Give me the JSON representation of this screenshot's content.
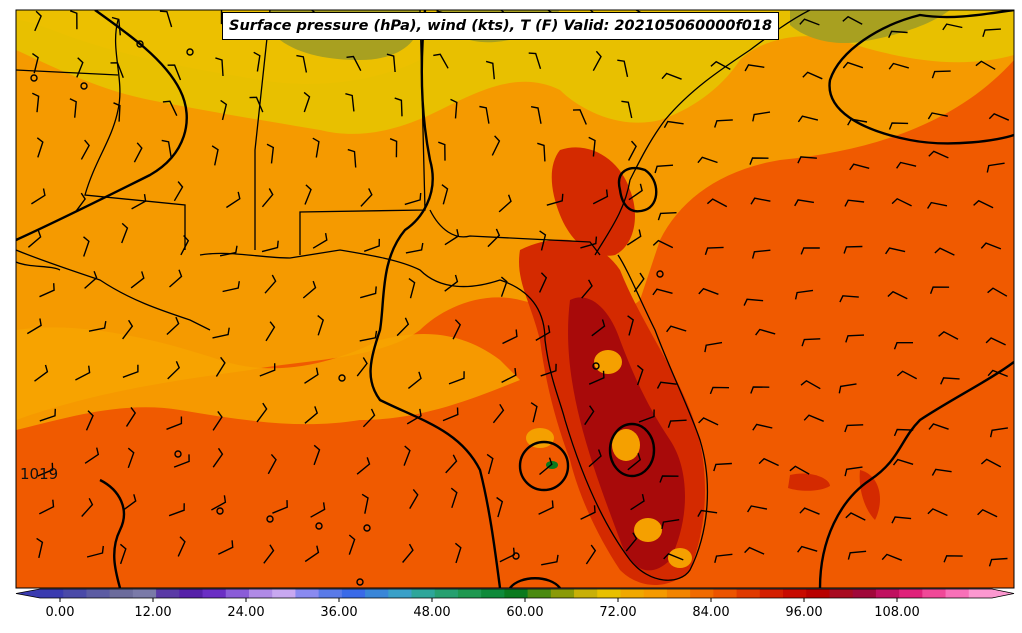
{
  "title": "Surface pressure (hPa), wind (kts), T (F) Valid: 202105060000f018",
  "contour_label": "1019",
  "colorbar": {
    "ticks": [
      "0.00",
      "12.00",
      "24.00",
      "36.00",
      "48.00",
      "60.00",
      "72.00",
      "84.00",
      "96.00",
      "108.00"
    ],
    "colors": [
      "#3a3bb0",
      "#4a4aa8",
      "#5c5ca3",
      "#6c6c9c",
      "#7a7aa8",
      "#5a3aa6",
      "#5520a8",
      "#6a2ec4",
      "#8a5cd8",
      "#b08ae6",
      "#c8a8f0",
      "#8a8af0",
      "#5a7ae8",
      "#3a6ae8",
      "#3a86d8",
      "#3aa0c8",
      "#2ea69a",
      "#26a070",
      "#1e9850",
      "#0e8a3a",
      "#0a7a1e",
      "#4a8a10",
      "#8a9a08",
      "#c8b008",
      "#e8c000",
      "#f0a800",
      "#f59a00",
      "#f28400",
      "#f06a00",
      "#ec5400",
      "#e03a00",
      "#d41e00",
      "#c80a00",
      "#b80000",
      "#a80a20",
      "#a0083a",
      "#c01060",
      "#e0207a",
      "#f04898",
      "#f870b8",
      "#fc98d0"
    ]
  },
  "colors": {
    "ocean_warm": "#f05a00",
    "land_cool": "#f0a800",
    "north_cool": "#e8c400",
    "hot_core": "#a80a0a",
    "hot_mid": "#d42a00",
    "olive": "#a0a020"
  }
}
